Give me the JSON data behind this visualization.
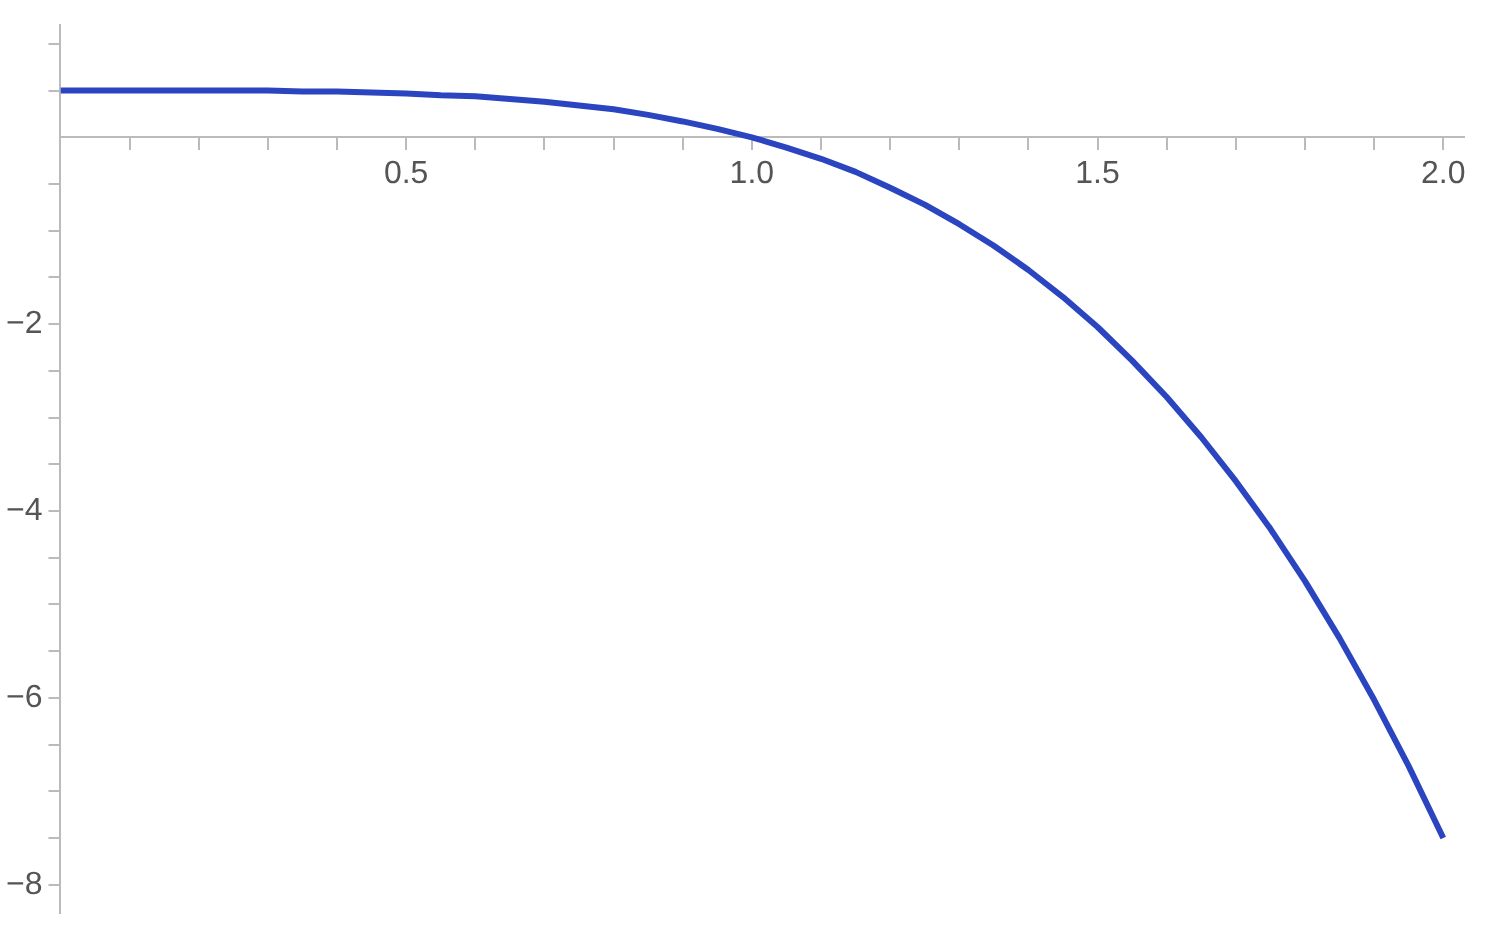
{
  "chart_data": {
    "type": "line",
    "x": [
      0,
      0.05,
      0.1,
      0.15,
      0.2,
      0.25,
      0.3,
      0.35,
      0.4,
      0.45,
      0.5,
      0.55,
      0.6,
      0.65,
      0.7,
      0.75,
      0.8,
      0.85,
      0.9,
      0.95,
      1.0,
      1.05,
      1.1,
      1.15,
      1.2,
      1.25,
      1.3,
      1.35,
      1.4,
      1.45,
      1.5,
      1.55,
      1.6,
      1.65,
      1.7,
      1.75,
      1.8,
      1.85,
      1.9,
      1.95,
      2.0
    ],
    "series": [
      {
        "color": "#2b45c0",
        "values": [
          0.5,
          0.5,
          0.5,
          0.5,
          0.5,
          0.5,
          0.5,
          0.49,
          0.49,
          0.48,
          0.47,
          0.45,
          0.44,
          0.41,
          0.38,
          0.34,
          0.3,
          0.24,
          0.17,
          0.09,
          0,
          -0.11,
          -0.23,
          -0.37,
          -0.54,
          -0.72,
          -0.93,
          -1.16,
          -1.42,
          -1.71,
          -2.03,
          -2.39,
          -2.78,
          -3.21,
          -3.68,
          -4.19,
          -4.75,
          -5.36,
          -6.02,
          -6.73,
          -7.5
        ]
      }
    ],
    "xlim": [
      0,
      2.03
    ],
    "ylim": [
      -8.3,
      1.2
    ],
    "xticks": [
      {
        "value": 0.1,
        "label": null
      },
      {
        "value": 0.2,
        "label": null
      },
      {
        "value": 0.3,
        "label": null
      },
      {
        "value": 0.4,
        "label": null
      },
      {
        "value": 0.5,
        "label": "0.5"
      },
      {
        "value": 0.6,
        "label": null
      },
      {
        "value": 0.7,
        "label": null
      },
      {
        "value": 0.8,
        "label": null
      },
      {
        "value": 0.9,
        "label": null
      },
      {
        "value": 1,
        "label": "1.0"
      },
      {
        "value": 1.1,
        "label": null
      },
      {
        "value": 1.2,
        "label": null
      },
      {
        "value": 1.3,
        "label": null
      },
      {
        "value": 1.4,
        "label": null
      },
      {
        "value": 1.5,
        "label": "1.5"
      },
      {
        "value": 1.6,
        "label": null
      },
      {
        "value": 1.7,
        "label": null
      },
      {
        "value": 1.8,
        "label": null
      },
      {
        "value": 1.9,
        "label": null
      },
      {
        "value": 2,
        "label": "2.0"
      }
    ],
    "yticks": [
      {
        "value": 1,
        "label": null
      },
      {
        "value": 0.5,
        "label": null
      },
      {
        "value": -0.5,
        "label": null
      },
      {
        "value": -1,
        "label": null
      },
      {
        "value": -1.5,
        "label": null
      },
      {
        "value": -2,
        "label": "−2"
      },
      {
        "value": -2.5,
        "label": null
      },
      {
        "value": -3,
        "label": null
      },
      {
        "value": -3.5,
        "label": null
      },
      {
        "value": -4,
        "label": "−4"
      },
      {
        "value": -4.5,
        "label": null
      },
      {
        "value": -5,
        "label": null
      },
      {
        "value": -5.5,
        "label": null
      },
      {
        "value": -6,
        "label": "−6"
      },
      {
        "value": -6.5,
        "label": null
      },
      {
        "value": -7,
        "label": null
      },
      {
        "value": -7.5,
        "label": null
      },
      {
        "value": -8,
        "label": "−8"
      }
    ],
    "grid": false,
    "legend": false,
    "marker": "none",
    "line_style": "solid"
  }
}
